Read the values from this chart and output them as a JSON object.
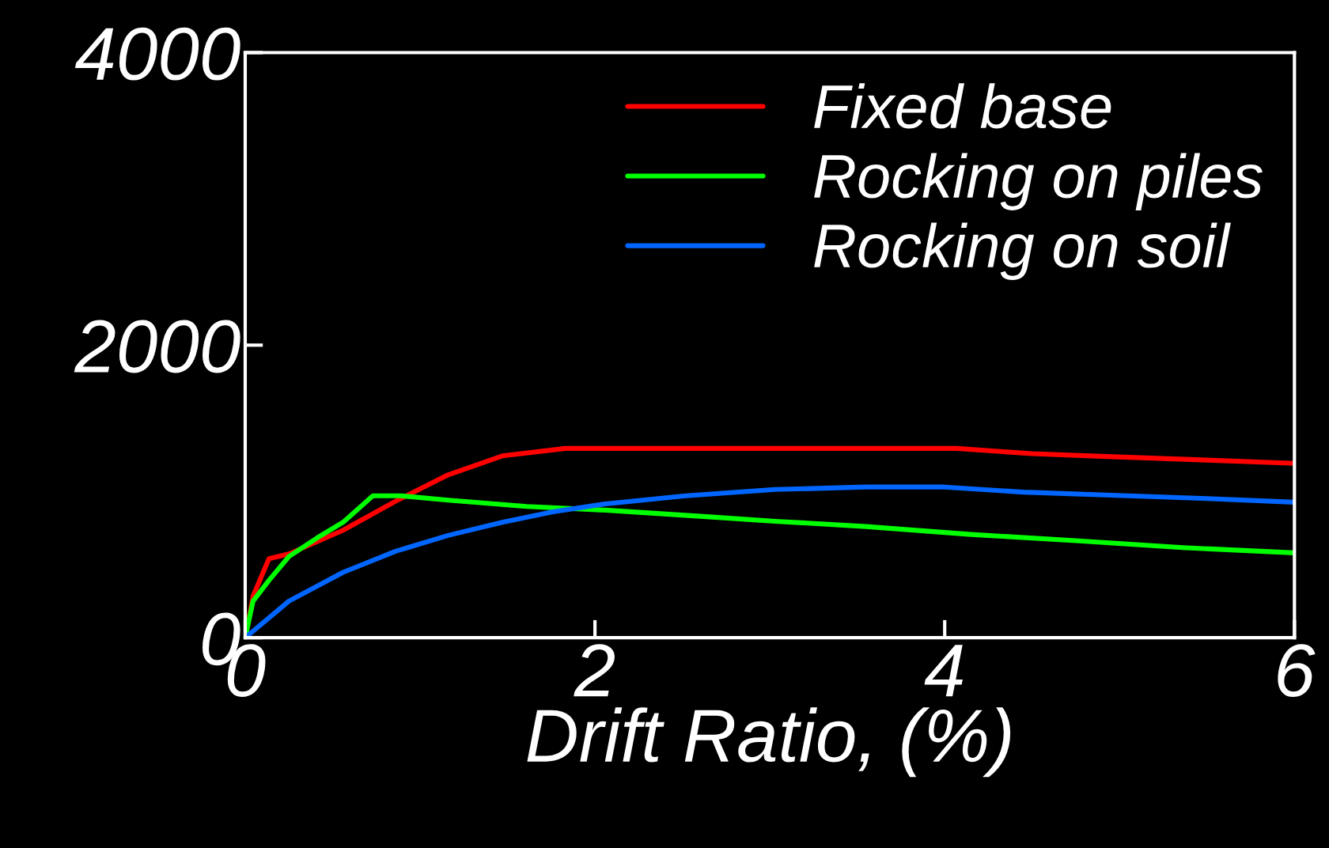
{
  "chart_data": {
    "type": "line",
    "xlabel": "Drift Ratio, (%)",
    "xlim": [
      0,
      6
    ],
    "xticks": [
      0,
      2,
      4,
      6
    ],
    "ylim": [
      0,
      4000
    ],
    "yticks": [
      0,
      2000,
      4000
    ],
    "grid": false,
    "legend": "top right",
    "marker": "none",
    "line_style": "solid",
    "series": [
      {
        "name": "Fixed base",
        "color": "#ff0000",
        "x": [
          0,
          0.045,
          0.136,
          0.25,
          0.56,
          0.86,
          1.16,
          1.47,
          1.83,
          4.07,
          4.5,
          4.9,
          5.5,
          6.0
        ],
        "values": [
          0,
          285,
          540,
          573,
          735,
          933,
          1113,
          1243,
          1294,
          1294,
          1258,
          1240,
          1214,
          1192
        ]
      },
      {
        "name": "Rocking on piles",
        "color": "#00ff00",
        "x": [
          0,
          0.045,
          0.136,
          0.25,
          0.41,
          0.56,
          0.73,
          0.89,
          1.16,
          1.61,
          2.06,
          2.67,
          3.03,
          3.55,
          4.15,
          4.75,
          5.36,
          6.0
        ],
        "values": [
          0,
          250,
          392,
          555,
          681,
          789,
          970,
          970,
          940,
          897,
          872,
          825,
          796,
          760,
          706,
          663,
          616,
          580
        ]
      },
      {
        "name": "Rocking on soil",
        "color": "#0066ff",
        "x": [
          0,
          0.25,
          0.56,
          0.86,
          1.16,
          1.47,
          1.76,
          2.06,
          2.52,
          3.03,
          3.55,
          4.0,
          4.45,
          5.05,
          5.5,
          6.0
        ],
        "values": [
          0,
          250,
          447,
          591,
          699,
          789,
          861,
          915,
          970,
          1013,
          1030,
          1030,
          995,
          970,
          951,
          926
        ]
      }
    ]
  }
}
